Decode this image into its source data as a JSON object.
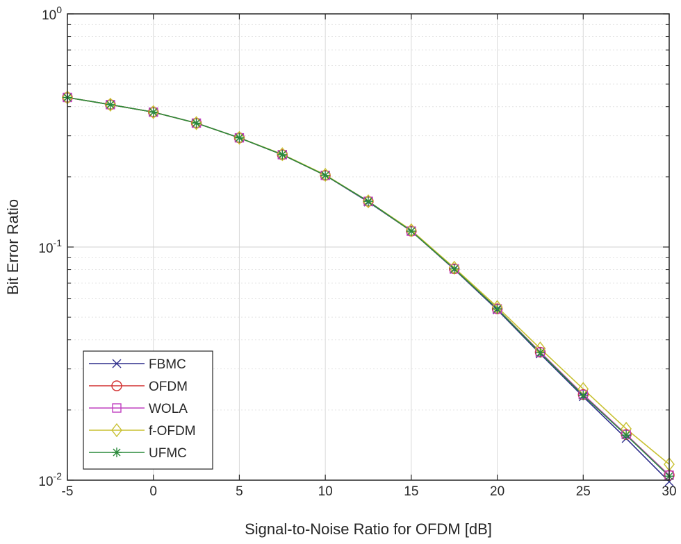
{
  "chart_data": {
    "type": "line",
    "title": "",
    "xlabel": "Signal-to-Noise Ratio for OFDM [dB]",
    "ylabel": "Bit Error Ratio",
    "xscale": "linear",
    "yscale": "log",
    "xlim": [
      -5,
      30
    ],
    "ylim": [
      0.01,
      1
    ],
    "grid": true,
    "legend_position": "bottom-left",
    "x_ticks": [
      -5,
      0,
      5,
      10,
      15,
      20,
      25,
      30
    ],
    "x_tick_labels": [
      "-5",
      "0",
      "5",
      "10",
      "15",
      "20",
      "25",
      "30"
    ],
    "y_ticks": [
      {
        "value": 1,
        "base": "10",
        "exp": "0"
      },
      {
        "value": 0.1,
        "base": "10",
        "exp": "-1"
      },
      {
        "value": 0.01,
        "base": "10",
        "exp": "-2"
      }
    ],
    "x": [
      -5,
      -2.5,
      0,
      2.5,
      5,
      7.5,
      10,
      12.5,
      15,
      17.5,
      20,
      22.5,
      25,
      27.5,
      30
    ],
    "series": [
      {
        "name": "FBMC",
        "color": "#2e2e8c",
        "marker": "x",
        "values": [
          0.438,
          0.408,
          0.379,
          0.34,
          0.294,
          0.249,
          0.203,
          0.156,
          0.117,
          0.0802,
          0.0538,
          0.0348,
          0.0228,
          0.0151,
          0.00985
        ]
      },
      {
        "name": "OFDM",
        "color": "#d23030",
        "marker": "circle",
        "values": [
          0.438,
          0.408,
          0.379,
          0.34,
          0.294,
          0.249,
          0.203,
          0.157,
          0.117,
          0.0806,
          0.0543,
          0.0354,
          0.0233,
          0.0157,
          0.0105
        ]
      },
      {
        "name": "WOLA",
        "color": "#c040c0",
        "marker": "square",
        "values": [
          0.438,
          0.408,
          0.379,
          0.34,
          0.294,
          0.249,
          0.203,
          0.157,
          0.117,
          0.0806,
          0.0543,
          0.0354,
          0.0233,
          0.0157,
          0.0105
        ]
      },
      {
        "name": "f-OFDM",
        "color": "#c8c030",
        "marker": "diamond",
        "values": [
          0.438,
          0.408,
          0.379,
          0.34,
          0.294,
          0.25,
          0.204,
          0.157,
          0.118,
          0.0815,
          0.0553,
          0.0367,
          0.0246,
          0.0166,
          0.0117
        ]
      },
      {
        "name": "UFMC",
        "color": "#2a8a3a",
        "marker": "asterisk",
        "values": [
          0.438,
          0.408,
          0.379,
          0.34,
          0.294,
          0.249,
          0.203,
          0.157,
          0.117,
          0.0806,
          0.0543,
          0.0352,
          0.0231,
          0.0156,
          0.0104
        ]
      }
    ]
  }
}
